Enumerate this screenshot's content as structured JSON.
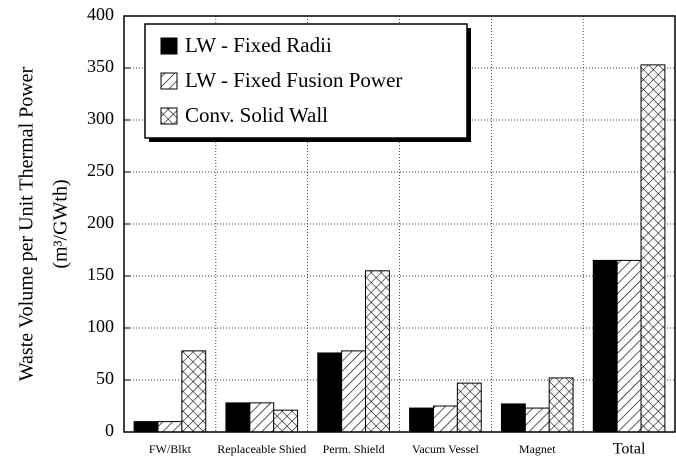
{
  "chart_data": {
    "type": "bar",
    "ylabel": [
      "Waste Volume per Unit Thermal Power",
      "(m³/GWth)"
    ],
    "categories": [
      "FW/Blkt",
      "Replaceable Shied",
      "Perm. Shield",
      "Vacum Vessel",
      "Magnet",
      "Total"
    ],
    "series": [
      {
        "name": "LW - Fixed Radii",
        "color": "#000000",
        "pattern": "solid",
        "values": [
          10,
          28,
          76,
          23,
          27,
          165
        ]
      },
      {
        "name": "LW - Fixed Fusion Power",
        "color": "#000000",
        "pattern": "diagonal",
        "values": [
          10,
          28,
          78,
          25,
          23,
          165
        ]
      },
      {
        "name": "Conv. Solid Wall",
        "color": "#000000",
        "pattern": "crosshatch",
        "values": [
          78,
          21,
          155,
          47,
          52,
          353
        ]
      }
    ],
    "ylim": [
      0,
      400
    ],
    "yticks": [
      0,
      50,
      100,
      150,
      200,
      250,
      300,
      350,
      400
    ],
    "grid": true,
    "legend": "upper left"
  }
}
